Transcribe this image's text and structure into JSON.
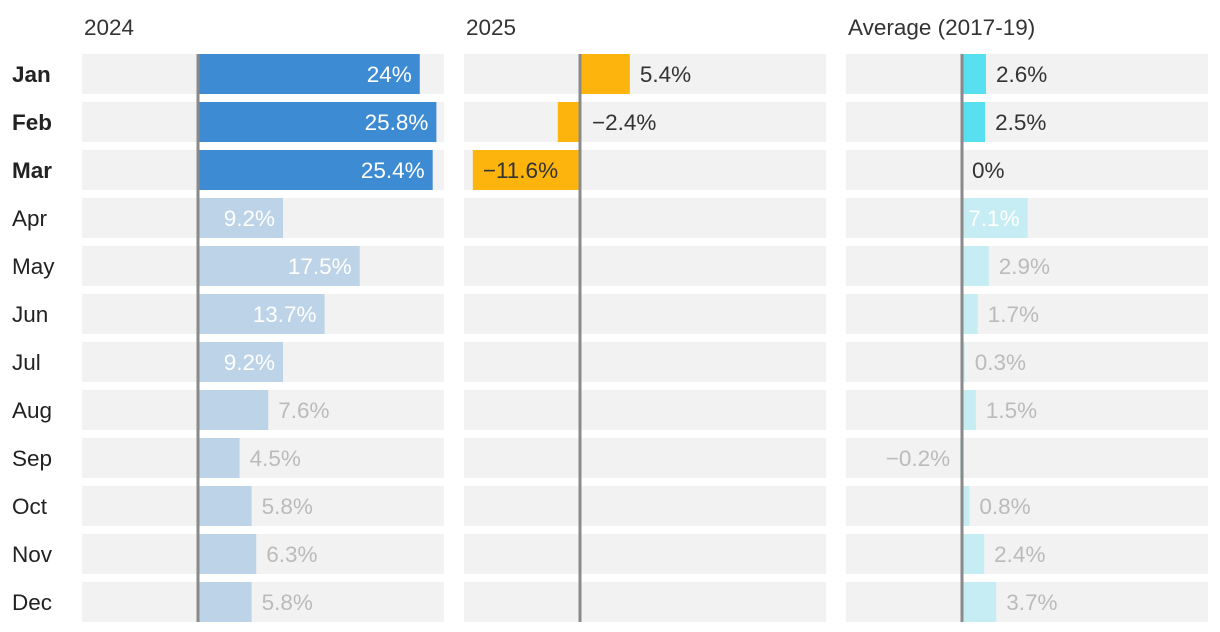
{
  "chart_data": {
    "type": "bar",
    "orientation": "horizontal",
    "layout": "small-multiples",
    "categories": [
      "Jan",
      "Feb",
      "Mar",
      "Apr",
      "May",
      "Jun",
      "Jul",
      "Aug",
      "Sep",
      "Oct",
      "Nov",
      "Dec"
    ],
    "highlighted_categories": [
      "Jan",
      "Feb",
      "Mar"
    ],
    "panels": [
      {
        "title": "2024",
        "color": "#3d8bd2",
        "color_faded": "#bdd3e8",
        "label_color": "#ffffff",
        "label_color_faded": "#ffffff",
        "label_color_outside_faded": "#bbbbbb",
        "xlim": [
          -12.5,
          25.8
        ],
        "values": [
          24,
          25.8,
          25.4,
          9.2,
          17.5,
          13.7,
          9.2,
          7.6,
          4.5,
          5.8,
          6.3,
          5.8
        ],
        "labels": [
          "24%",
          "25.8%",
          "25.4%",
          "9.2%",
          "17.5%",
          "13.7%",
          "9.2%",
          "7.6%",
          "4.5%",
          "5.8%",
          "6.3%",
          "5.8%"
        ],
        "label_inside": [
          true,
          true,
          true,
          true,
          true,
          true,
          true,
          false,
          false,
          false,
          false,
          false
        ]
      },
      {
        "title": "2025",
        "color": "#fdb50e",
        "xlim": [
          -12.5,
          25.8
        ],
        "values": [
          5.4,
          -2.4,
          -11.6,
          null,
          null,
          null,
          null,
          null,
          null,
          null,
          null,
          null
        ],
        "labels": [
          "5.4%",
          "−2.4%",
          "−11.6%",
          "",
          "",
          "",
          "",
          "",
          "",
          "",
          "",
          ""
        ],
        "label_inside": [
          false,
          false,
          true,
          false,
          false,
          false,
          false,
          false,
          false,
          false,
          false,
          false
        ]
      },
      {
        "title": "Average (2017-19)",
        "color": "#58dff0",
        "color_faded": "#c6edf3",
        "label_color_faded": "#bbbbbb",
        "xlim": [
          -12.5,
          25.8
        ],
        "values": [
          2.6,
          2.5,
          0,
          7.1,
          2.9,
          1.7,
          0.3,
          1.5,
          -0.2,
          0.8,
          2.4,
          3.7
        ],
        "labels": [
          "2.6%",
          "2.5%",
          "0%",
          "7.1%",
          "2.9%",
          "1.7%",
          "0.3%",
          "1.5%",
          "−0.2%",
          "0.8%",
          "2.4%",
          "3.7%"
        ],
        "label_inside": [
          false,
          false,
          false,
          true,
          false,
          false,
          false,
          false,
          false,
          false,
          false,
          false
        ]
      }
    ],
    "grid": false,
    "legend": "none"
  }
}
